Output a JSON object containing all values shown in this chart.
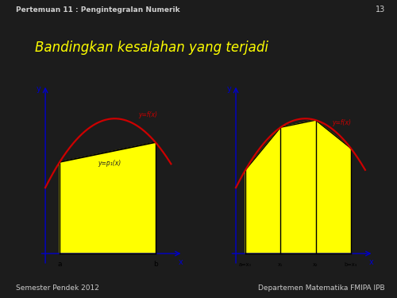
{
  "bg_color": "#1c1c1c",
  "left_panel_color": "#888888",
  "header_bg": "#333333",
  "footer_bg": "#2a2a2a",
  "header_text": "Pertemuan 11 : Pengintegralan Numerik",
  "header_num": "13",
  "header_color": "#d0d0d0",
  "title_text": "Bandingkan kesalahan yang terjadi",
  "title_color": "#ffff00",
  "footer_left": "Semester Pendek 2012",
  "footer_right": "Departemen Matematika FMIPA IPB",
  "footer_color": "#cccccc",
  "plot_bg": "#ffffff",
  "curve_color": "#cc0000",
  "line_color": "#000000",
  "fill_color": "#ffff00",
  "axis_color": "#0000cc",
  "left_label_fx": "y=f(x)",
  "left_label_p1x": "y=p₁(x)",
  "right_label_fx": "y=f(x)",
  "right_xtick_labels": [
    "a=x₀",
    "x₁",
    "x₂",
    "b=x₃"
  ]
}
